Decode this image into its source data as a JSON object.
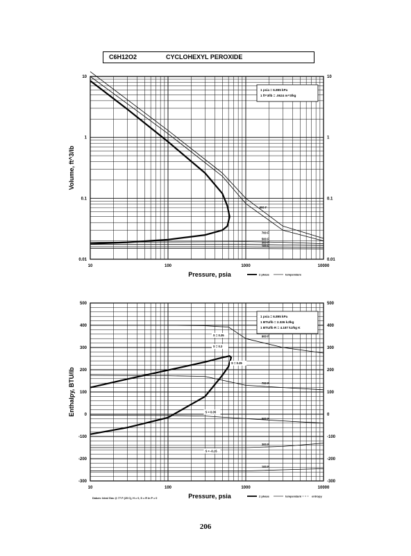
{
  "title": {
    "formula": "C6H12O2",
    "name": "CYCLOHEXYL PEROXIDE"
  },
  "page_number": "206",
  "chart_data": [
    {
      "type": "line",
      "log_x": true,
      "log_y": true,
      "xlabel": "Pressure,  psia",
      "ylabel": "Volume,  ft^3/lb",
      "xlim": [
        10,
        10000
      ],
      "ylim": [
        0.01,
        10
      ],
      "x_ticks": [
        "10",
        "100",
        "1000",
        "10000"
      ],
      "y_ticks": [
        "10",
        "1",
        "0.1",
        "0.01"
      ],
      "y_ticks_right": [
        "10",
        "1",
        "0.1",
        "0.01"
      ],
      "grid": true,
      "conversion_box": [
        "1 psia = 6.895 kPa",
        "1 ft^3/lb = .0624 m^3/kg"
      ],
      "legend": [
        "2 phase",
        "temperature"
      ],
      "series": [
        {
          "name": "2 phase",
          "x": [
            10,
            30,
            100,
            300,
            500,
            580,
            620,
            580,
            500,
            300,
            100,
            30,
            10
          ],
          "y": [
            8.5,
            2.9,
            0.85,
            0.26,
            0.12,
            0.075,
            0.05,
            0.035,
            0.03,
            0.025,
            0.021,
            0.019,
            0.018
          ]
        },
        {
          "name": "",
          "x": [
            10,
            100,
            500,
            1000,
            3000,
            10000
          ],
          "y": [
            12,
            1.3,
            0.26,
            0.1,
            0.035,
            0.022
          ]
        },
        {
          "name": "",
          "x": [
            10,
            100,
            500,
            1000,
            3000,
            10000
          ],
          "y": [
            10,
            1.15,
            0.23,
            0.082,
            0.03,
            0.02
          ]
        },
        {
          "name": "",
          "x": [
            10,
            1000,
            3000,
            10000
          ],
          "y": [
            0.019,
            0.0195,
            0.019,
            0.018
          ]
        },
        {
          "name": "",
          "x": [
            10,
            1000,
            3000,
            10000
          ],
          "y": [
            0.0175,
            0.0175,
            0.0172,
            0.0168
          ]
        },
        {
          "name": "",
          "x": [
            10,
            1000,
            3000,
            10000
          ],
          "y": [
            0.016,
            0.016,
            0.0158,
            0.0156
          ]
        },
        {
          "name": "",
          "x": [
            10,
            1000,
            10000
          ],
          "y": [
            0.015,
            0.015,
            0.0148
          ]
        }
      ],
      "temperature_labels": [
        "900 F",
        "700 F",
        "500 F",
        "300 F",
        "100 F"
      ]
    },
    {
      "type": "line",
      "log_x": true,
      "xlabel": "Pressure,  psia",
      "ylabel": "Enthalpy,  BTU/lb",
      "xlim": [
        10,
        10000
      ],
      "ylim": [
        -300,
        500
      ],
      "x_ticks": [
        "10",
        "100",
        "1000",
        "10000"
      ],
      "y_ticks": [
        "500",
        "400",
        "300",
        "200",
        "100",
        "0",
        "-100",
        "-200",
        "-300"
      ],
      "y_ticks_right": [
        "500",
        "400",
        "300",
        "200",
        "100",
        "0",
        "-100",
        "-200",
        "-300"
      ],
      "grid": true,
      "conversion_box": [
        "1 psia = 6.895 kPa",
        "1 BTU/lb = 2.326 kJ/kg",
        "1 BTU/lb R = 4.187 kJ/kg K"
      ],
      "legend": [
        "2 phase",
        "temperature",
        "entropy"
      ],
      "datum_note": "Datum: Ideal Gas @ 77 F (25 C),  H = 0,  S = R ln P = 0",
      "series": [
        {
          "name": "2 phase",
          "x": [
            10,
            30,
            100,
            300,
            500,
            620,
            650,
            600,
            500,
            300,
            100,
            30,
            10
          ],
          "y": [
            120,
            158,
            198,
            235,
            255,
            262,
            255,
            215,
            175,
            80,
            -15,
            -60,
            -90
          ]
        },
        {
          "name": "",
          "x": [
            10,
            100,
            300,
            600,
            1000,
            3000,
            10000
          ],
          "y": [
            400,
            400,
            398,
            392,
            340,
            300,
            275
          ]
        },
        {
          "name": "",
          "x": [
            10,
            100,
            300,
            1000,
            3000,
            10000
          ],
          "y": [
            175,
            173,
            170,
            130,
            120,
            110
          ]
        },
        {
          "name": "",
          "x": [
            10,
            100,
            300,
            1000,
            3000,
            10000
          ],
          "y": [
            -5,
            -6,
            -8,
            -20,
            -30,
            -40
          ]
        },
        {
          "name": "",
          "x": [
            10,
            100,
            300,
            1000,
            3000,
            10000
          ],
          "y": [
            -150,
            -150,
            -150,
            -150,
            -145,
            -130
          ]
        },
        {
          "name": "",
          "x": [
            10,
            100,
            1000,
            3000,
            10000
          ],
          "y": [
            -255,
            -255,
            -255,
            -250,
            -245
          ]
        }
      ],
      "entropy_labels": [
        "S = 0.35",
        "S = 0.3",
        "S = 0.25",
        "S = 0.05",
        "S = -0.15"
      ],
      "temperature_labels": [
        "900 F",
        "700 F",
        "500 F",
        "300 F",
        "100 F"
      ]
    }
  ]
}
